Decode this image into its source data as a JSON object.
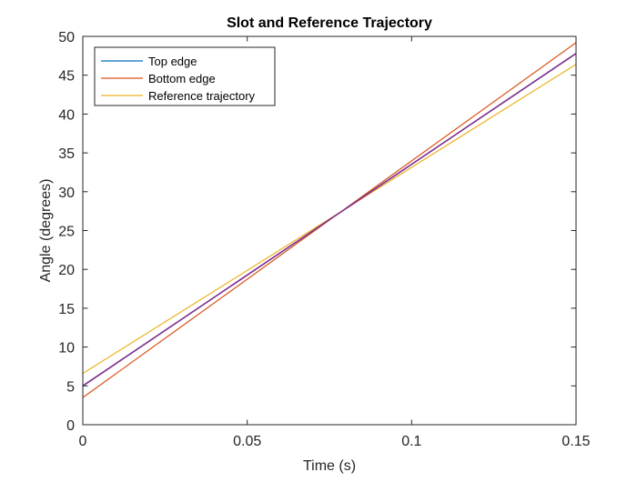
{
  "chart_data": {
    "type": "line",
    "title": "Slot and Reference Trajectory",
    "xlabel": "Time (s)",
    "ylabel": "Angle (degrees)",
    "xlim": [
      0,
      0.15
    ],
    "ylim": [
      0,
      50
    ],
    "x_ticks": [
      0,
      0.05,
      0.1,
      0.15
    ],
    "x_tick_labels": [
      "0",
      "0.05",
      "0.1",
      "0.15"
    ],
    "y_ticks": [
      0,
      5,
      10,
      15,
      20,
      25,
      30,
      35,
      40,
      45,
      50
    ],
    "y_tick_labels": [
      "0",
      "5",
      "10",
      "15",
      "20",
      "25",
      "30",
      "35",
      "40",
      "45",
      "50"
    ],
    "grid": false,
    "legend_position": "top-left",
    "series": [
      {
        "name": "Top edge",
        "color": "#0072BD",
        "x": [
          0,
          0.15
        ],
        "y": [
          5.0,
          47.8
        ]
      },
      {
        "name": "Bottom edge",
        "color": "#D95319",
        "x": [
          0,
          0.15
        ],
        "y": [
          3.5,
          49.2
        ]
      },
      {
        "name": "Reference trajectory",
        "color": "#EDB120",
        "x": [
          0,
          0.15
        ],
        "y": [
          6.6,
          46.4
        ]
      }
    ],
    "overlay": {
      "color": "#7E2F8E",
      "x": [
        0,
        0.15
      ],
      "y": [
        5.0,
        47.8
      ]
    }
  }
}
